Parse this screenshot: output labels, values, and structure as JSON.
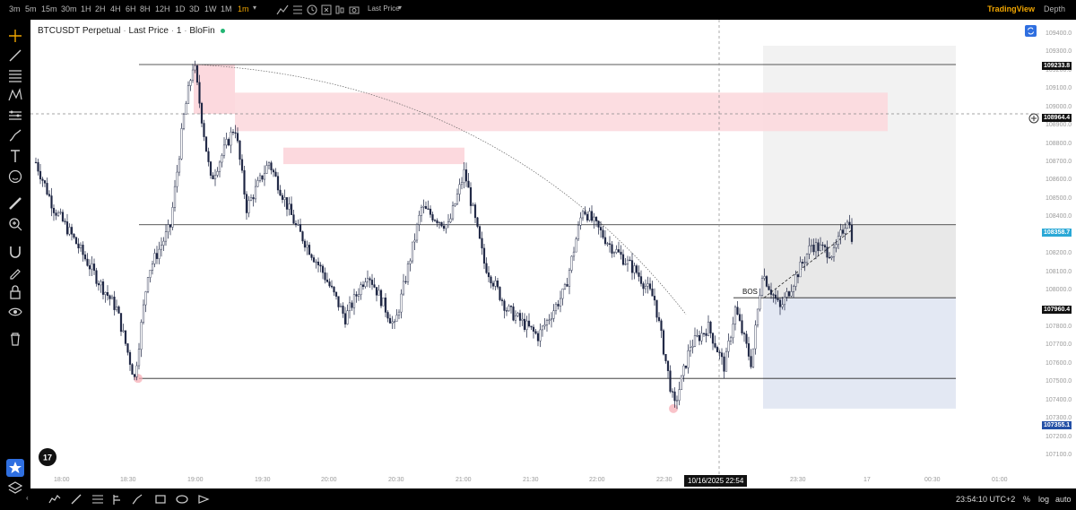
{
  "toolbar": {
    "timeframes": [
      "3m",
      "5m",
      "15m",
      "30m",
      "1H",
      "2H",
      "4H",
      "6H",
      "8H",
      "12H",
      "1D",
      "3D",
      "1W",
      "1M",
      "1m"
    ],
    "active_timeframe": "1m",
    "price_type": "Last Price",
    "brand": "TradingView",
    "depth": "Depth"
  },
  "legend": {
    "symbol": "BTCUSDT Perpetual",
    "price_type": "Last Price",
    "interval": "1",
    "exchange": "BloFin"
  },
  "price_axis": {
    "ticks": [
      "109400.0",
      "109300.0",
      "109200.0",
      "109100.0",
      "109000.0",
      "108900.0",
      "108800.0",
      "108700.0",
      "108600.0",
      "108500.0",
      "108400.0",
      "108300.0",
      "108200.0",
      "108100.0",
      "108000.0",
      "107900.0",
      "107800.0",
      "107700.0",
      "107600.0",
      "107500.0",
      "107400.0",
      "107300.0",
      "107200.0",
      "107100.0"
    ],
    "labels": [
      {
        "value": "109233.8",
        "color": "#111111"
      },
      {
        "value": "108964.4",
        "color": "#111111"
      },
      {
        "value": "108358.7",
        "color": "#2aa8d6"
      },
      {
        "value": "107960.4",
        "color": "#111111"
      },
      {
        "value": "107355.1",
        "color": "#2450a6"
      }
    ]
  },
  "time_axis": {
    "ticks": [
      "18:00",
      "18:30",
      "19:00",
      "19:30",
      "20:00",
      "20:30",
      "21:00",
      "21:30",
      "22:00",
      "22:30",
      "23:30",
      "17",
      "00:30",
      "01:00"
    ],
    "crosshair_label": "10/16/2025   22:54"
  },
  "annotations": {
    "bos": "BOS"
  },
  "chart_data": {
    "type": "candlestick",
    "symbol": "BTCUSDT Perpetual",
    "interval": "1m",
    "ylim": [
      107100,
      109400
    ],
    "levels": [
      109233.8,
      108358.7,
      107520,
      107960.4
    ],
    "current_price": 108358.7,
    "crosshair_price": 108964.4,
    "low_marker": 107355.1,
    "zones": [
      {
        "from_price": 109080,
        "to_price": 108870,
        "label": "supply-zone-1"
      },
      {
        "from_price": 108780,
        "to_price": 108690,
        "label": "supply-zone-2"
      }
    ],
    "position_target": 108358.7,
    "position_entry": 107960.4,
    "position_stop": 107355.1
  },
  "status": {
    "clock": "23:54:10 UTC+2",
    "percent": "%",
    "log": "log",
    "auto": "auto"
  },
  "colors": {
    "accent": "#f0a500",
    "zone_fill": "#fcd9de",
    "target_fill": "#e8e8e8",
    "stop_fill": "#e3e8f3",
    "candle_up": "#ffffff",
    "candle_down": "#1a2240"
  }
}
